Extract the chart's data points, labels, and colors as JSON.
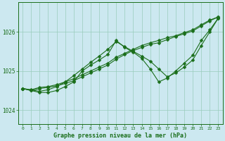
{
  "bg_color": "#cce8f0",
  "line_color": "#1a6e1a",
  "grid_color": "#99ccbb",
  "xlabel": "Graphe pression niveau de la mer (hPa)",
  "xlabel_color": "#1a6e1a",
  "tick_color": "#1a6e1a",
  "xlim": [
    -0.5,
    23.5
  ],
  "ylim": [
    1023.65,
    1026.75
  ],
  "yticks": [
    1024,
    1025,
    1026
  ],
  "xticks": [
    0,
    1,
    2,
    3,
    4,
    5,
    6,
    7,
    8,
    9,
    10,
    11,
    12,
    13,
    14,
    15,
    16,
    17,
    18,
    19,
    20,
    21,
    22,
    23
  ],
  "series": [
    {
      "x": [
        0,
        1,
        2,
        3,
        4,
        5,
        6,
        7,
        8,
        9,
        10,
        11,
        12,
        13,
        14,
        15,
        16,
        17,
        18,
        19,
        20,
        21,
        22,
        23
      ],
      "y": [
        1024.55,
        1024.52,
        1024.58,
        1024.6,
        1024.65,
        1024.72,
        1024.8,
        1024.9,
        1025.0,
        1025.1,
        1025.2,
        1025.35,
        1025.45,
        1025.55,
        1025.65,
        1025.72,
        1025.78,
        1025.85,
        1025.9,
        1025.98,
        1026.05,
        1026.18,
        1026.3,
        1026.38
      ]
    },
    {
      "x": [
        0,
        2,
        3,
        4,
        5,
        6,
        7,
        8,
        9,
        10,
        11,
        12,
        13,
        14,
        15,
        16,
        17,
        18,
        19,
        20,
        21,
        22,
        23
      ],
      "y": [
        1024.55,
        1024.48,
        1024.52,
        1024.6,
        1024.72,
        1024.88,
        1025.05,
        1025.22,
        1025.38,
        1025.55,
        1025.75,
        1025.62,
        1025.5,
        1025.38,
        1025.25,
        1025.05,
        1024.85,
        1024.95,
        1025.1,
        1025.28,
        1025.65,
        1026.0,
        1026.35
      ]
    },
    {
      "x": [
        0,
        1,
        2,
        3,
        4,
        5,
        6,
        7,
        8,
        9,
        10,
        11,
        12,
        13,
        14,
        15,
        16,
        17,
        18,
        19,
        20,
        21,
        22,
        23
      ],
      "y": [
        1024.55,
        1024.5,
        1024.45,
        1024.45,
        1024.5,
        1024.6,
        1024.72,
        1025.0,
        1025.15,
        1025.28,
        1025.42,
        1025.78,
        1025.6,
        1025.48,
        1025.32,
        1025.05,
        1024.72,
        1024.82,
        1025.0,
        1025.2,
        1025.4,
        1025.78,
        1026.05,
        1026.35
      ]
    },
    {
      "x": [
        0,
        1,
        2,
        3,
        4,
        5,
        6,
        7,
        8,
        9,
        10,
        11,
        12,
        13,
        14,
        15,
        16,
        17,
        18,
        19,
        20,
        21,
        22,
        23
      ],
      "y": [
        1024.55,
        1024.5,
        1024.55,
        1024.58,
        1024.62,
        1024.68,
        1024.75,
        1024.85,
        1024.95,
        1025.05,
        1025.15,
        1025.3,
        1025.42,
        1025.52,
        1025.6,
        1025.68,
        1025.72,
        1025.8,
        1025.88,
        1025.95,
        1026.02,
        1026.15,
        1026.28,
        1026.38
      ]
    }
  ]
}
